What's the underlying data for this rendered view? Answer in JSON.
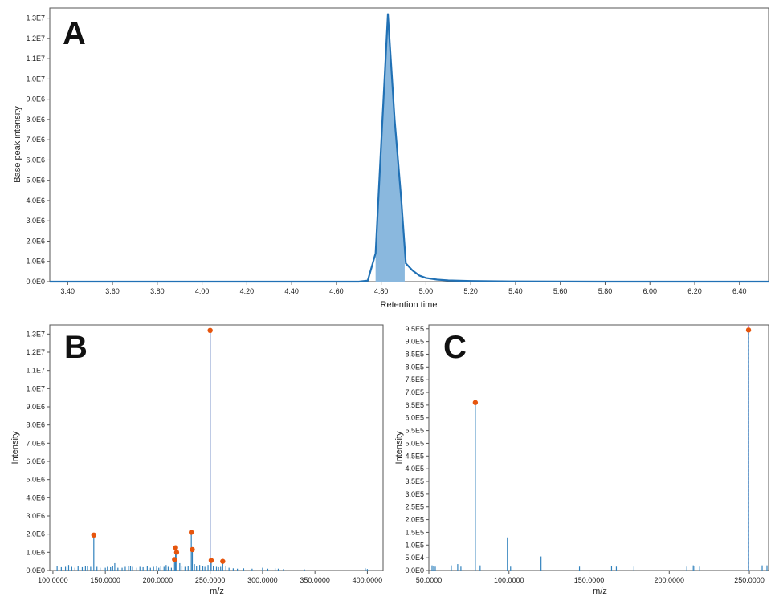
{
  "colors": {
    "line": "#2171b5",
    "fill": "#8ab8de",
    "spike": "#3182bd",
    "marker": "#e6550d",
    "highlight": "#b35fbf",
    "frame": "#555555"
  },
  "chart_data": [
    {
      "type": "area",
      "panel_label": "A",
      "xlabel": "Retention time",
      "ylabel": "Base peak intensity",
      "xlim": [
        3.32,
        6.53
      ],
      "ylim": [
        0,
        13500000
      ],
      "x_ticks": [
        "3.40",
        "3.60",
        "3.80",
        "4.00",
        "4.20",
        "4.40",
        "4.60",
        "4.80",
        "5.00",
        "5.20",
        "5.40",
        "5.60",
        "5.80",
        "6.00",
        "6.20",
        "6.40"
      ],
      "y_ticks": [
        "0.0E0",
        "1.0E6",
        "2.0E6",
        "3.0E6",
        "4.0E6",
        "5.0E6",
        "6.0E6",
        "7.0E6",
        "8.0E6",
        "9.0E6",
        "1.0E7",
        "1.1E7",
        "1.2E7",
        "1.3E7"
      ],
      "series": [
        {
          "x": [
            3.32,
            4.7,
            4.74,
            4.775,
            4.8,
            4.83,
            4.86,
            4.89,
            4.91,
            4.94,
            4.97,
            5.0,
            5.05,
            5.1,
            5.2,
            5.4,
            5.8,
            6.53
          ],
          "y": [
            0,
            0,
            50000,
            1400000,
            6800000,
            13200000,
            8000000,
            4000000,
            900000,
            550000,
            300000,
            180000,
            100000,
            60000,
            30000,
            10000,
            0,
            0
          ]
        }
      ],
      "shaded_range": [
        4.775,
        4.905
      ]
    },
    {
      "type": "bar",
      "panel_label": "B",
      "xlabel": "m/z",
      "ylabel": "Intensity",
      "xlim": [
        97,
        415
      ],
      "ylim": [
        0,
        13500000
      ],
      "x_ticks": [
        "100.0000",
        "150.0000",
        "200.0000",
        "250.0000",
        "300.0000",
        "350.0000",
        "400.0000"
      ],
      "y_ticks": [
        "0.0E0",
        "1.0E6",
        "2.0E6",
        "3.0E6",
        "4.0E6",
        "5.0E6",
        "6.0E6",
        "7.0E6",
        "8.0E6",
        "9.0E6",
        "1.0E7",
        "1.1E7",
        "1.2E7",
        "1.3E7"
      ],
      "peaks": [
        {
          "x": 104,
          "y": 250000
        },
        {
          "x": 108,
          "y": 180000
        },
        {
          "x": 112,
          "y": 200000
        },
        {
          "x": 115,
          "y": 300000
        },
        {
          "x": 118,
          "y": 200000
        },
        {
          "x": 121,
          "y": 150000
        },
        {
          "x": 124,
          "y": 250000
        },
        {
          "x": 128,
          "y": 180000
        },
        {
          "x": 131,
          "y": 220000
        },
        {
          "x": 133,
          "y": 250000
        },
        {
          "x": 136,
          "y": 200000
        },
        {
          "x": 139,
          "y": 1950000
        },
        {
          "x": 142,
          "y": 200000
        },
        {
          "x": 145,
          "y": 150000
        },
        {
          "x": 150,
          "y": 150000
        },
        {
          "x": 152,
          "y": 200000
        },
        {
          "x": 155,
          "y": 180000
        },
        {
          "x": 157,
          "y": 250000
        },
        {
          "x": 159,
          "y": 400000
        },
        {
          "x": 162,
          "y": 150000
        },
        {
          "x": 166,
          "y": 150000
        },
        {
          "x": 169,
          "y": 200000
        },
        {
          "x": 172,
          "y": 250000
        },
        {
          "x": 174,
          "y": 220000
        },
        {
          "x": 176,
          "y": 200000
        },
        {
          "x": 180,
          "y": 150000
        },
        {
          "x": 183,
          "y": 200000
        },
        {
          "x": 186,
          "y": 180000
        },
        {
          "x": 190,
          "y": 220000
        },
        {
          "x": 193,
          "y": 150000
        },
        {
          "x": 196,
          "y": 200000
        },
        {
          "x": 199,
          "y": 250000
        },
        {
          "x": 201,
          "y": 150000
        },
        {
          "x": 203,
          "y": 220000
        },
        {
          "x": 206,
          "y": 200000
        },
        {
          "x": 208,
          "y": 300000
        },
        {
          "x": 210,
          "y": 200000
        },
        {
          "x": 213,
          "y": 150000
        },
        {
          "x": 216,
          "y": 600000
        },
        {
          "x": 217,
          "y": 1250000
        },
        {
          "x": 218,
          "y": 1000000
        },
        {
          "x": 221,
          "y": 400000
        },
        {
          "x": 223,
          "y": 250000
        },
        {
          "x": 226,
          "y": 200000
        },
        {
          "x": 229,
          "y": 250000
        },
        {
          "x": 232,
          "y": 2100000
        },
        {
          "x": 233,
          "y": 1150000
        },
        {
          "x": 235,
          "y": 350000
        },
        {
          "x": 237,
          "y": 250000
        },
        {
          "x": 240,
          "y": 300000
        },
        {
          "x": 243,
          "y": 250000
        },
        {
          "x": 245,
          "y": 200000
        },
        {
          "x": 248,
          "y": 300000
        },
        {
          "x": 250,
          "y": 13200000
        },
        {
          "x": 251,
          "y": 550000
        },
        {
          "x": 253,
          "y": 250000
        },
        {
          "x": 256,
          "y": 200000
        },
        {
          "x": 258,
          "y": 180000
        },
        {
          "x": 260,
          "y": 200000
        },
        {
          "x": 262,
          "y": 500000
        },
        {
          "x": 265,
          "y": 250000
        },
        {
          "x": 268,
          "y": 150000
        },
        {
          "x": 272,
          "y": 120000
        },
        {
          "x": 276,
          "y": 100000
        },
        {
          "x": 282,
          "y": 120000
        },
        {
          "x": 290,
          "y": 100000
        },
        {
          "x": 300,
          "y": 150000
        },
        {
          "x": 305,
          "y": 100000
        },
        {
          "x": 312,
          "y": 120000
        },
        {
          "x": 315,
          "y": 100000
        },
        {
          "x": 320,
          "y": 80000
        },
        {
          "x": 340,
          "y": 60000
        },
        {
          "x": 398,
          "y": 120000
        },
        {
          "x": 400,
          "y": 80000
        }
      ],
      "markers": [
        {
          "x": 139,
          "y": 1950000
        },
        {
          "x": 216,
          "y": 600000
        },
        {
          "x": 217,
          "y": 1250000
        },
        {
          "x": 218,
          "y": 1000000
        },
        {
          "x": 232,
          "y": 2100000
        },
        {
          "x": 233,
          "y": 1150000
        },
        {
          "x": 250,
          "y": 13200000
        },
        {
          "x": 251,
          "y": 550000
        },
        {
          "x": 262,
          "y": 500000
        }
      ],
      "highlight_x": 250
    },
    {
      "type": "bar",
      "panel_label": "C",
      "xlabel": "m/z",
      "ylabel": "Intensity",
      "xlim": [
        50,
        262
      ],
      "ylim": [
        0,
        965000
      ],
      "x_ticks": [
        "50.0000",
        "100.0000",
        "150.0000",
        "200.0000",
        "250.0000"
      ],
      "y_ticks": [
        "0.0E0",
        "5.0E4",
        "1.0E5",
        "1.5E5",
        "2.0E5",
        "2.5E5",
        "3.0E5",
        "3.5E5",
        "4.0E5",
        "4.5E5",
        "5.0E5",
        "5.5E5",
        "6.0E5",
        "6.5E5",
        "7.0E5",
        "7.5E5",
        "8.0E5",
        "8.5E5",
        "9.0E5",
        "9.5E5"
      ],
      "peaks": [
        {
          "x": 52,
          "y": 20000
        },
        {
          "x": 53,
          "y": 18000
        },
        {
          "x": 54,
          "y": 15000
        },
        {
          "x": 64,
          "y": 20000
        },
        {
          "x": 68,
          "y": 25000
        },
        {
          "x": 70,
          "y": 15000
        },
        {
          "x": 79,
          "y": 660000
        },
        {
          "x": 82,
          "y": 20000
        },
        {
          "x": 99,
          "y": 130000
        },
        {
          "x": 101,
          "y": 15000
        },
        {
          "x": 120,
          "y": 55000
        },
        {
          "x": 144,
          "y": 15000
        },
        {
          "x": 164,
          "y": 18000
        },
        {
          "x": 167,
          "y": 15000
        },
        {
          "x": 178,
          "y": 15000
        },
        {
          "x": 211,
          "y": 15000
        },
        {
          "x": 215,
          "y": 20000
        },
        {
          "x": 216,
          "y": 18000
        },
        {
          "x": 219,
          "y": 15000
        },
        {
          "x": 249.5,
          "y": 945000
        },
        {
          "x": 258,
          "y": 20000
        },
        {
          "x": 261,
          "y": 20000
        }
      ],
      "markers": [
        {
          "x": 79,
          "y": 660000
        },
        {
          "x": 249.5,
          "y": 945000
        }
      ],
      "highlight_x": 249.5
    }
  ]
}
